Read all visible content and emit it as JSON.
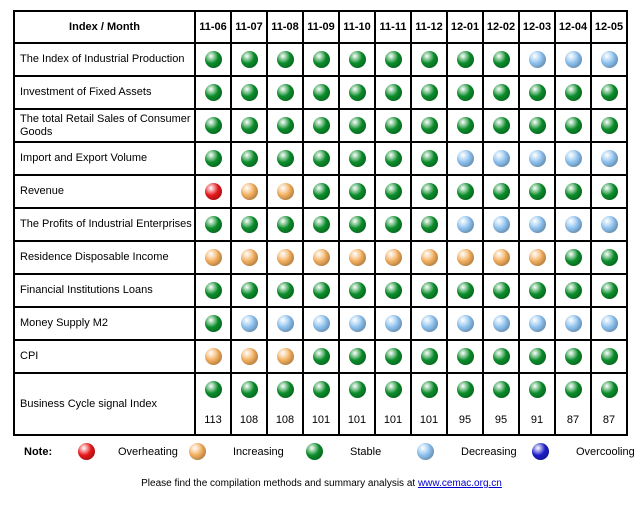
{
  "header": {
    "index_label": "Index / Month",
    "months": [
      "11-06",
      "11-07",
      "11-08",
      "11-09",
      "11-10",
      "11-11",
      "11-12",
      "12-01",
      "12-02",
      "12-03",
      "12-04",
      "12-05"
    ]
  },
  "signal_colors": {
    "overheating": "#e8191c",
    "increasing": "#f4b05f",
    "stable": "#0c8f2c",
    "decreasing": "#8ec3f0",
    "overcooling": "#1f1fcc"
  },
  "rows": [
    {
      "label": "The Index of Industrial Production",
      "signals": [
        "stable",
        "stable",
        "stable",
        "stable",
        "stable",
        "stable",
        "stable",
        "stable",
        "stable",
        "decreasing",
        "decreasing",
        "decreasing"
      ]
    },
    {
      "label": "Investment of Fixed Assets",
      "signals": [
        "stable",
        "stable",
        "stable",
        "stable",
        "stable",
        "stable",
        "stable",
        "stable",
        "stable",
        "stable",
        "stable",
        "stable"
      ]
    },
    {
      "label": "The total Retail Sales of Consumer Goods",
      "signals": [
        "stable",
        "stable",
        "stable",
        "stable",
        "stable",
        "stable",
        "stable",
        "stable",
        "stable",
        "stable",
        "stable",
        "stable"
      ]
    },
    {
      "label": "Import and Export Volume",
      "signals": [
        "stable",
        "stable",
        "stable",
        "stable",
        "stable",
        "stable",
        "stable",
        "decreasing",
        "decreasing",
        "decreasing",
        "decreasing",
        "decreasing"
      ]
    },
    {
      "label": "Revenue",
      "signals": [
        "overheating",
        "increasing",
        "increasing",
        "stable",
        "stable",
        "stable",
        "stable",
        "stable",
        "stable",
        "stable",
        "stable",
        "stable"
      ]
    },
    {
      "label": "The Profits of Industrial Enterprises",
      "signals": [
        "stable",
        "stable",
        "stable",
        "stable",
        "stable",
        "stable",
        "stable",
        "decreasing",
        "decreasing",
        "decreasing",
        "decreasing",
        "decreasing"
      ]
    },
    {
      "label": "Residence Disposable Income",
      "signals": [
        "increasing",
        "increasing",
        "increasing",
        "increasing",
        "increasing",
        "increasing",
        "increasing",
        "increasing",
        "increasing",
        "increasing",
        "stable",
        "stable"
      ]
    },
    {
      "label": "Financial Institutions Loans",
      "signals": [
        "stable",
        "stable",
        "stable",
        "stable",
        "stable",
        "stable",
        "stable",
        "stable",
        "stable",
        "stable",
        "stable",
        "stable"
      ]
    },
    {
      "label": "Money Supply M2",
      "signals": [
        "stable",
        "decreasing",
        "decreasing",
        "decreasing",
        "decreasing",
        "decreasing",
        "decreasing",
        "decreasing",
        "decreasing",
        "decreasing",
        "decreasing",
        "decreasing"
      ]
    },
    {
      "label": "CPI",
      "signals": [
        "increasing",
        "increasing",
        "increasing",
        "stable",
        "stable",
        "stable",
        "stable",
        "stable",
        "stable",
        "stable",
        "stable",
        "stable"
      ]
    }
  ],
  "cycle": {
    "label": "Business Cycle signal Index",
    "signals": [
      "stable",
      "stable",
      "stable",
      "stable",
      "stable",
      "stable",
      "stable",
      "stable",
      "stable",
      "stable",
      "stable",
      "stable"
    ],
    "values": [
      "113",
      "108",
      "108",
      "101",
      "101",
      "101",
      "101",
      "95",
      "95",
      "91",
      "87",
      "87"
    ]
  },
  "legend": {
    "note": "Note:",
    "items": [
      {
        "key": "overheating",
        "label": "Overheating"
      },
      {
        "key": "increasing",
        "label": "Increasing"
      },
      {
        "key": "stable",
        "label": "Stable"
      },
      {
        "key": "decreasing",
        "label": "Decreasing"
      },
      {
        "key": "overcooling",
        "label": "Overcooling"
      }
    ]
  },
  "footer": {
    "text": "Please find the compilation methods and summary analysis at ",
    "link": "www.cemac.org.cn"
  }
}
